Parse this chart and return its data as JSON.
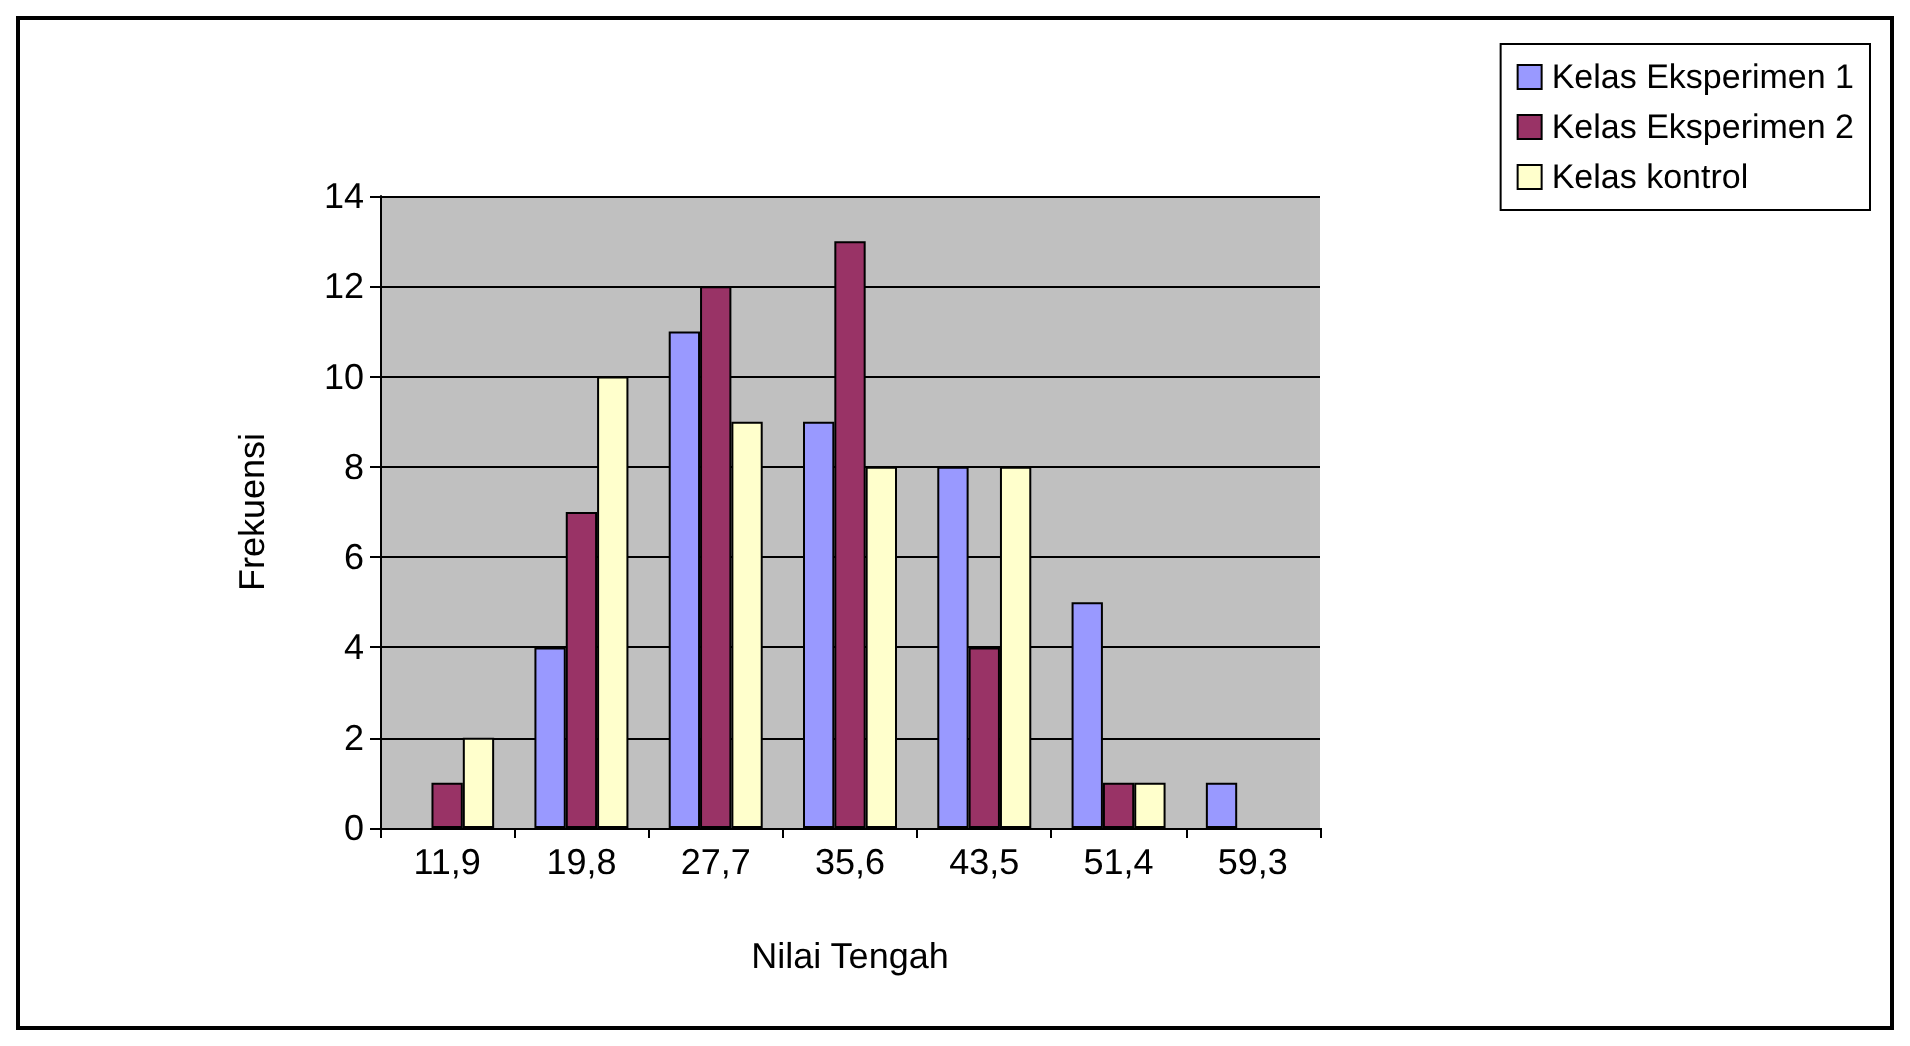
{
  "chart_data": {
    "type": "bar",
    "xlabel": "Nilai Tengah",
    "ylabel": "Frekuensi",
    "categories": [
      "11,9",
      "19,8",
      "27,7",
      "35,6",
      "43,5",
      "51,4",
      "59,3"
    ],
    "series": [
      {
        "name": "Kelas Eksperimen 1",
        "color": "#9999ff",
        "values": [
          0,
          4,
          11,
          9,
          8,
          5,
          1
        ]
      },
      {
        "name": "Kelas Eksperimen 2",
        "color": "#993366",
        "values": [
          1,
          7,
          12,
          13,
          4,
          1,
          0
        ]
      },
      {
        "name": "Kelas kontrol",
        "color": "#ffffcc",
        "values": [
          2,
          10,
          9,
          8,
          8,
          1,
          0
        ]
      }
    ],
    "ylim": [
      0,
      14
    ],
    "yticks": [
      0,
      2,
      4,
      6,
      8,
      10,
      12,
      14
    ],
    "grid": "y",
    "legend": "top right"
  }
}
